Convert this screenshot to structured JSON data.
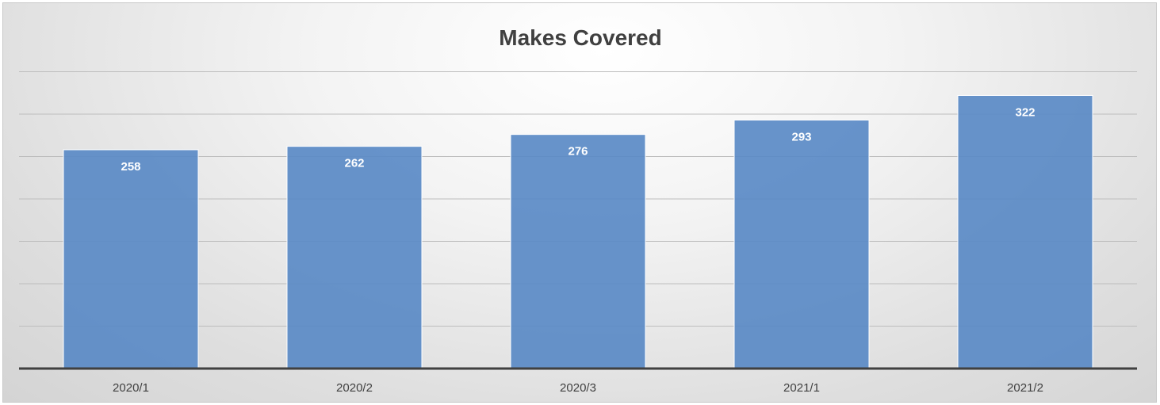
{
  "chart_data": {
    "type": "bar",
    "title": "Makes Covered",
    "categories": [
      "2020/1",
      "2020/2",
      "2020/3",
      "2021/1",
      "2021/2"
    ],
    "values": [
      258,
      262,
      276,
      293,
      322
    ],
    "xlabel": "",
    "ylabel": "",
    "ylim": [
      0,
      350
    ],
    "grid": true,
    "gridline_step": 50,
    "bar_color": "#5a8ac6",
    "data_labels": true,
    "legend": "none"
  }
}
